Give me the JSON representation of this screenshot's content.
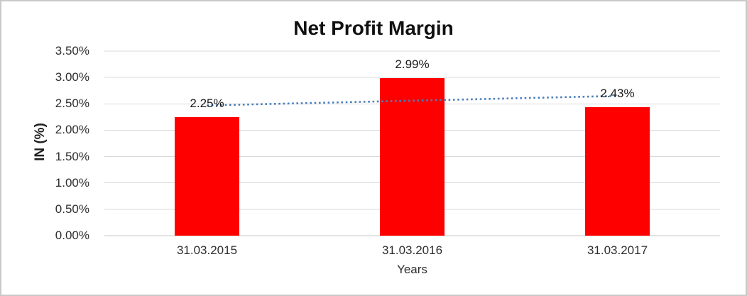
{
  "chart_data": {
    "type": "bar",
    "title": "Net Profit Margin",
    "xlabel": "Years",
    "ylabel": "IN (%)",
    "categories": [
      "31.03.2015",
      "31.03.2016",
      "31.03.2017"
    ],
    "series": [
      {
        "name": "Net Profit Margin",
        "values": [
          2.25,
          2.99,
          2.43
        ],
        "data_labels": [
          "2.25%",
          "2.99%",
          "2.43%"
        ],
        "color": "#FF0000"
      }
    ],
    "ylim": [
      0,
      3.5
    ],
    "ytick_step": 0.5,
    "ytick_labels": [
      "0.00%",
      "0.50%",
      "1.00%",
      "1.50%",
      "2.00%",
      "2.50%",
      "3.00%",
      "3.50%"
    ],
    "grid": true,
    "gridline_color": "#D9D9D9",
    "axis_line_color": "#C9C9C9",
    "legend": false,
    "trendline": {
      "type": "linear",
      "style": "dotted",
      "color": "#4A7EBB",
      "y_start": 2.47,
      "y_end": 2.65
    }
  }
}
